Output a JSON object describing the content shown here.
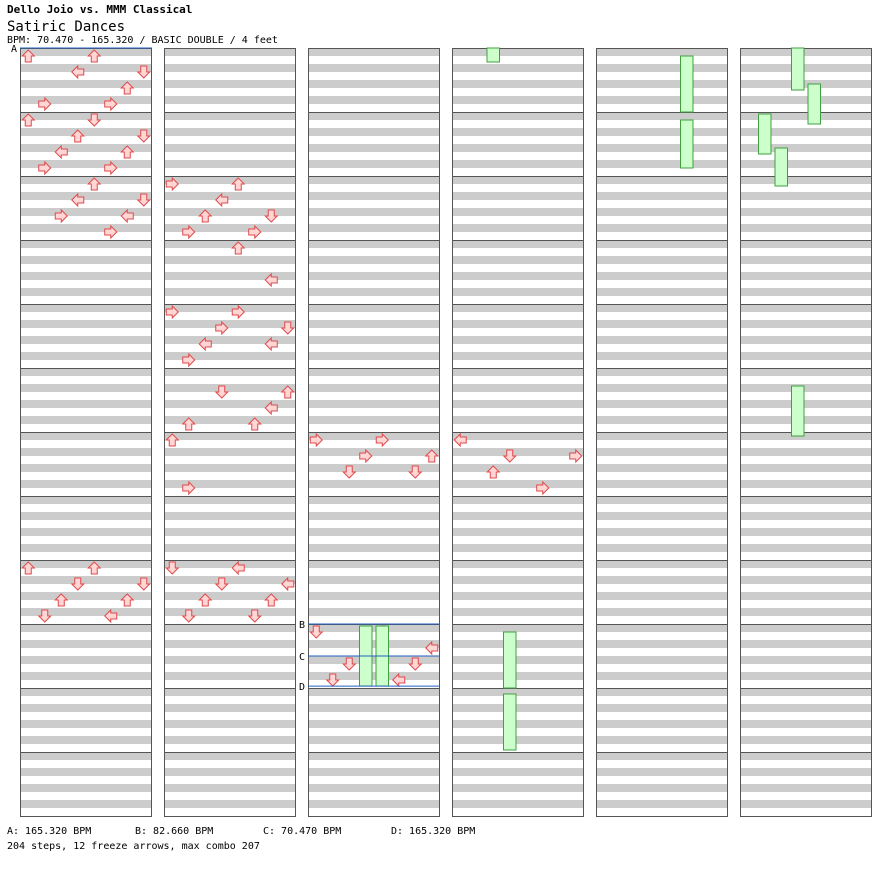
{
  "header": {
    "title": "Dello Joio vs. MMM Classical",
    "song": "Satiric Dances",
    "bpm_line": "BPM: 70.470 - 165.320 / BASIC DOUBLE / 4 feet"
  },
  "footer": {
    "bpm_a": "A: 165.320 BPM",
    "bpm_b": "B: 82.660 BPM",
    "bpm_c": "C: 70.470 BPM",
    "bpm_d": "D: 165.320 BPM",
    "stats": "204 steps, 12 freeze arrows, max combo 207"
  },
  "markers": [
    {
      "label": "A",
      "col": 0,
      "measure": 0,
      "frac": 0
    },
    {
      "label": "B",
      "col": 2,
      "measure": 9,
      "frac": 0
    },
    {
      "label": "C",
      "col": 2,
      "measure": 9,
      "frac": 0.5
    },
    {
      "label": "D",
      "col": 2,
      "measure": 9,
      "frac": 0.97
    }
  ],
  "colors": {
    "arrow_fill": "#ffd6d6",
    "arrow_stroke": "#e04848",
    "freeze_fill": "#ccffcc",
    "freeze_stroke": "#40a040",
    "stripe": "#cccccc",
    "marker_line": "#2060c0"
  },
  "notes": [
    [
      0,
      0,
      0,
      "U"
    ],
    [
      0,
      1,
      0,
      "R"
    ],
    [
      0,
      3,
      0,
      "L"
    ],
    [
      0,
      4,
      0,
      "U"
    ],
    [
      0,
      5,
      0,
      "R"
    ],
    [
      0,
      6,
      0,
      "U"
    ],
    [
      0,
      7,
      0,
      "D"
    ],
    [
      0,
      0,
      1,
      "U"
    ],
    [
      0,
      1,
      1,
      "R"
    ],
    [
      0,
      2,
      1,
      "L"
    ],
    [
      0,
      3,
      1,
      "U"
    ],
    [
      0,
      4,
      1,
      "D"
    ],
    [
      0,
      5,
      1,
      "R"
    ],
    [
      0,
      6,
      1,
      "U"
    ],
    [
      0,
      7,
      1,
      "D"
    ],
    [
      0,
      2,
      2,
      "R"
    ],
    [
      0,
      3,
      2,
      "L"
    ],
    [
      0,
      4,
      2,
      "U"
    ],
    [
      0,
      5,
      2,
      "R"
    ],
    [
      0,
      6,
      2,
      "L"
    ],
    [
      0,
      7,
      2,
      "D"
    ],
    [
      1,
      0,
      2,
      "R"
    ],
    [
      1,
      1,
      2,
      "R"
    ],
    [
      1,
      2,
      2,
      "U"
    ],
    [
      1,
      3,
      2,
      "L"
    ],
    [
      1,
      4,
      2,
      "U"
    ],
    [
      1,
      5,
      2,
      "R"
    ],
    [
      1,
      6,
      2,
      "D"
    ],
    [
      1,
      4,
      3,
      "U"
    ],
    [
      1,
      6,
      3,
      "L"
    ],
    [
      1,
      0,
      4,
      "R"
    ],
    [
      1,
      1,
      4,
      "R"
    ],
    [
      1,
      2,
      4,
      "L"
    ],
    [
      1,
      3,
      4,
      "R"
    ],
    [
      1,
      4,
      4,
      "R"
    ],
    [
      1,
      6,
      4,
      "L"
    ],
    [
      1,
      7,
      4,
      "D"
    ],
    [
      1,
      1,
      5,
      "U"
    ],
    [
      1,
      3,
      5,
      "D"
    ],
    [
      1,
      5,
      5,
      "U"
    ],
    [
      1,
      6,
      5,
      "L"
    ],
    [
      1,
      7,
      5,
      "U"
    ],
    [
      1,
      0,
      6,
      "U"
    ],
    [
      1,
      1,
      6,
      "R"
    ],
    [
      2,
      0,
      6,
      "R"
    ],
    [
      2,
      2,
      6,
      "D"
    ],
    [
      2,
      3,
      6,
      "R"
    ],
    [
      2,
      4,
      6,
      "R"
    ],
    [
      2,
      6,
      6,
      "D"
    ],
    [
      2,
      7,
      6,
      "U"
    ],
    [
      3,
      0,
      6,
      "L"
    ],
    [
      3,
      2,
      6,
      "U"
    ],
    [
      3,
      3,
      6,
      "D"
    ],
    [
      3,
      5,
      6,
      "R"
    ],
    [
      3,
      7,
      6,
      "R"
    ],
    [
      0,
      0,
      8,
      "U"
    ],
    [
      0,
      1,
      8,
      "D"
    ],
    [
      0,
      2,
      8,
      "U"
    ],
    [
      0,
      3,
      8,
      "D"
    ],
    [
      0,
      4,
      8,
      "U"
    ],
    [
      0,
      5,
      8,
      "L"
    ],
    [
      0,
      6,
      8,
      "U"
    ],
    [
      0,
      7,
      8,
      "D"
    ],
    [
      1,
      0,
      8,
      "D"
    ],
    [
      1,
      1,
      8,
      "D"
    ],
    [
      1,
      2,
      8,
      "U"
    ],
    [
      1,
      3,
      8,
      "D"
    ],
    [
      1,
      4,
      8,
      "L"
    ],
    [
      1,
      5,
      8,
      "D"
    ],
    [
      1,
      6,
      8,
      "U"
    ],
    [
      1,
      7,
      8,
      "L"
    ],
    [
      2,
      0,
      9,
      "D"
    ],
    [
      2,
      1,
      9,
      "D"
    ],
    [
      2,
      2,
      9,
      "D"
    ],
    [
      2,
      3,
      9,
      "D"
    ],
    [
      2,
      4,
      9,
      "L"
    ],
    [
      2,
      5,
      9,
      "L"
    ],
    [
      2,
      6,
      9,
      "D"
    ],
    [
      2,
      7,
      9,
      "L"
    ]
  ]
}
